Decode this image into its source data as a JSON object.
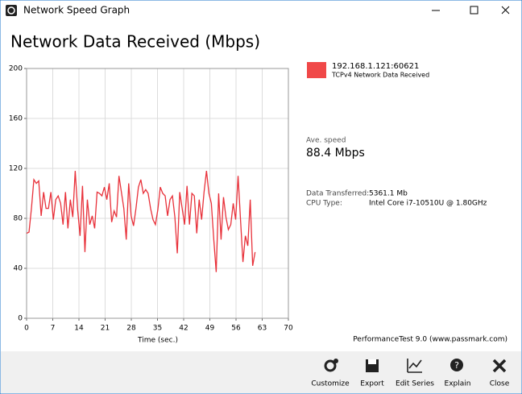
{
  "window": {
    "title": "Network Speed Graph"
  },
  "chart_data": {
    "type": "line",
    "title": "Network Data Received (Mbps)",
    "x_label": "Time (sec.)",
    "x": [
      0,
      0.65,
      1.3,
      1.95,
      2.6,
      3.25,
      3.9,
      4.55,
      5.2,
      5.85,
      6.5,
      7.15,
      7.8,
      8.45,
      9.1,
      9.75,
      10.4,
      11.05,
      11.7,
      12.35,
      13,
      13.65,
      14.3,
      14.95,
      15.6,
      16.25,
      16.9,
      17.55,
      18.2,
      18.85,
      19.5,
      20.15,
      20.8,
      21.45,
      22.1,
      22.75,
      23.4,
      24.05,
      24.7,
      25.35,
      26,
      26.65,
      27.3,
      27.95,
      28.6,
      29.25,
      29.9,
      30.55,
      31.2,
      31.85,
      32.5,
      33.15,
      33.8,
      34.45,
      35.1,
      35.75,
      36.4,
      37.05,
      37.7,
      38.35,
      39,
      39.65,
      40.3,
      40.95,
      41.6,
      42.25,
      42.9,
      43.55,
      44.2,
      44.85,
      45.5,
      46.15,
      46.8,
      47.45,
      48.1,
      48.75,
      49.4,
      50.05,
      50.7,
      51.35,
      52,
      52.65,
      53.3,
      53.95,
      54.6,
      55.25,
      55.9,
      56.55,
      57.2,
      57.85,
      58.5,
      59.15,
      59.8,
      60.45,
      61.1
    ],
    "series": [
      {
        "name": "192.168.1.121:60621",
        "description": "TCPv4 Network Data Received",
        "color": "#e8313a",
        "values": [
          68,
          69,
          88,
          111,
          108,
          110,
          82,
          101,
          88,
          88,
          101,
          79,
          95,
          98,
          92,
          75,
          101,
          72,
          95,
          81,
          118,
          87,
          66,
          106,
          53,
          95,
          75,
          82,
          72,
          101,
          100,
          98,
          105,
          95,
          108,
          77,
          86,
          81,
          114,
          101,
          88,
          63,
          108,
          82,
          74,
          88,
          105,
          111,
          100,
          103,
          100,
          88,
          79,
          75,
          87,
          105,
          100,
          98,
          82,
          95,
          98,
          81,
          52,
          101,
          88,
          75,
          106,
          75,
          100,
          98,
          68,
          95,
          79,
          101,
          118,
          100,
          92,
          63,
          37,
          100,
          63,
          97,
          81,
          71,
          75,
          92,
          79,
          114,
          79,
          45,
          66,
          58,
          95,
          42,
          53
        ]
      }
    ],
    "legend_color": "#f04848",
    "xlim": [
      0,
      70
    ],
    "xticks": [
      0,
      7,
      14,
      21,
      28,
      35,
      42,
      49,
      56,
      63,
      70
    ],
    "ylim": [
      0,
      200
    ],
    "yticks": [
      0,
      40,
      80,
      120,
      160,
      200
    ],
    "grid": true
  },
  "stats": {
    "average_label": "Ave. speed",
    "average": "88.4 Mbps",
    "rows": [
      [
        "Data Transferred:",
        "5361.1 Mb"
      ],
      [
        "CPU Type:",
        "Intel Core i7-10510U @ 1.80GHz"
      ]
    ]
  },
  "footer": "PerformanceTest 9.0 (www.passmark.com)",
  "toolbar": [
    "Customize",
    "Export",
    "Edit Series",
    "Explain",
    "Close"
  ]
}
